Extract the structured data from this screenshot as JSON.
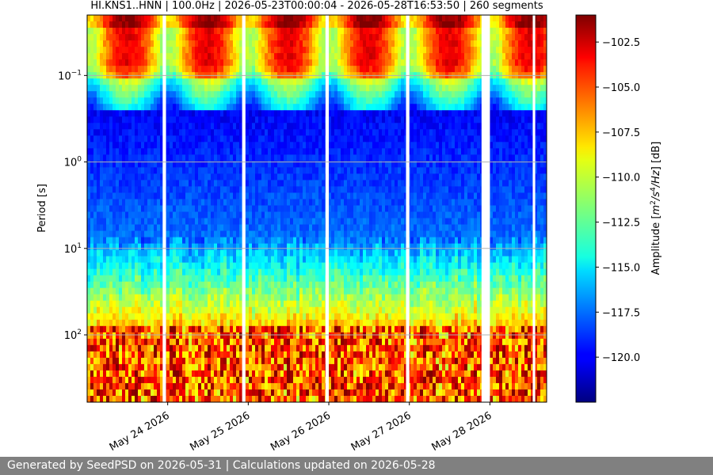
{
  "chart_data": {
    "type": "heatmap",
    "title": "HI.KNS1..HNN | 100.0Hz | 2026-05-23T00:00:04 - 2026-05-28T16:53:50 | 260 segments",
    "ylabel": "Period [s]",
    "y_scale": "log",
    "y_inverted": true,
    "ylim": [
      0.02,
      600
    ],
    "y_ticks": [
      {
        "value": 0.1,
        "base": "10",
        "exp": "−1"
      },
      {
        "value": 1,
        "base": "10",
        "exp": "0"
      },
      {
        "value": 10,
        "base": "10",
        "exp": "1"
      },
      {
        "value": 100,
        "base": "10",
        "exp": "2"
      }
    ],
    "xlim": [
      "2026-05-23T00:00:04",
      "2026-05-28T16:53:50"
    ],
    "x_ticks": [
      {
        "label": "May 24 2026",
        "value": "2026-05-24"
      },
      {
        "label": "May 25 2026",
        "value": "2026-05-25"
      },
      {
        "label": "May 26 2026",
        "value": "2026-05-26"
      },
      {
        "label": "May 27 2026",
        "value": "2026-05-27"
      },
      {
        "label": "May 28 2026",
        "value": "2026-05-28"
      }
    ],
    "data_gaps": [
      [
        "2026-05-23T22:30:00",
        "2026-05-23T23:30:00"
      ],
      [
        "2026-05-24T22:10:00",
        "2026-05-24T23:10:00"
      ],
      [
        "2026-05-25T23:00:00",
        "2026-05-26T00:00:00"
      ],
      [
        "2026-05-26T23:00:00",
        "2026-05-27T00:00:00"
      ],
      [
        "2026-05-27T21:30:00",
        "2026-05-28T00:00:00"
      ],
      [
        "2026-05-28T12:45:00",
        "2026-05-28T13:30:00"
      ]
    ],
    "grid": true,
    "colorbar": {
      "label_parts": [
        "Amplitude [",
        "m",
        "2",
        "/s",
        "4",
        "/Hz",
        "] [dB]"
      ],
      "range": [
        -122.5,
        -101.0
      ],
      "ticks": [
        "-102.5",
        "-105.0",
        "-107.5",
        "-110.0",
        "-112.5",
        "-115.0",
        "-117.5",
        "-120.0"
      ],
      "tick_values": [
        -102.5,
        -105.0,
        -107.5,
        -110.0,
        -112.5,
        -115.0,
        -117.5,
        -120.0
      ],
      "colormap": "jet"
    }
  },
  "footer": {
    "text": "Generated by SeedPSD on 2026-05-31 | Calculations updated on 2026-05-28"
  }
}
